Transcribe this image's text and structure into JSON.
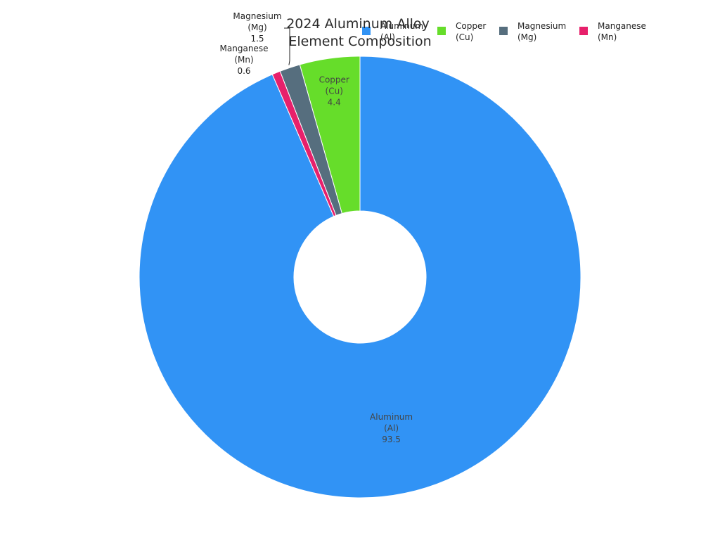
{
  "chart_data": {
    "type": "pie",
    "donut": true,
    "title": [
      "2024 Aluminum Alloy",
      "Element Composition"
    ],
    "legend_position": "top-right",
    "slices": [
      {
        "id": "al",
        "label": [
          "Aluminum",
          "(Al)"
        ],
        "value": 93.5,
        "value_label": "93.5",
        "color": "#3193f5"
      },
      {
        "id": "cu",
        "label": [
          "Copper",
          "(Cu)"
        ],
        "value": 4.4,
        "value_label": "4.4",
        "color": "#66dd2a"
      },
      {
        "id": "mg",
        "label": [
          "Magnesium",
          "(Mg)"
        ],
        "value": 1.5,
        "value_label": "1.5",
        "color": "#566e7e"
      },
      {
        "id": "mn",
        "label": [
          "Manganese",
          "(Mn)"
        ],
        "value": 0.6,
        "value_label": "0.6",
        "color": "#e7206b"
      }
    ]
  }
}
